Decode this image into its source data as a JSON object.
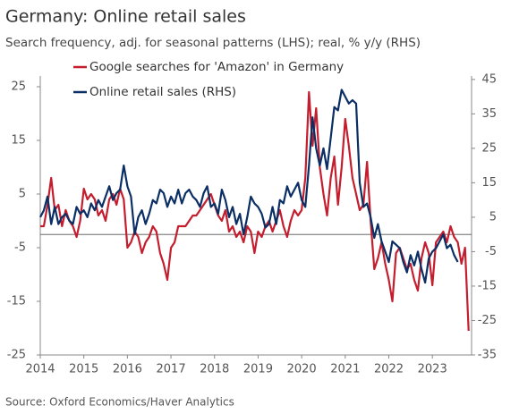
{
  "chart_data": {
    "type": "line",
    "title": "Germany: Online retail sales",
    "subtitle": "Search frequency, adj. for seasonal patterns (LHS); real, % y/y (RHS)",
    "source": "Source: Oxford Economics/Haver Analytics",
    "x": [
      2014,
      2014.083,
      2014.167,
      2014.25,
      2014.333,
      2014.417,
      2014.5,
      2014.583,
      2014.667,
      2014.75,
      2014.833,
      2014.917,
      2015,
      2015.083,
      2015.167,
      2015.25,
      2015.333,
      2015.417,
      2015.5,
      2015.583,
      2015.667,
      2015.75,
      2015.833,
      2015.917,
      2016,
      2016.083,
      2016.167,
      2016.25,
      2016.333,
      2016.417,
      2016.5,
      2016.583,
      2016.667,
      2016.75,
      2016.833,
      2016.917,
      2017,
      2017.083,
      2017.167,
      2017.25,
      2017.333,
      2017.417,
      2017.5,
      2017.583,
      2017.667,
      2017.75,
      2017.833,
      2017.917,
      2018,
      2018.083,
      2018.167,
      2018.25,
      2018.333,
      2018.417,
      2018.5,
      2018.583,
      2018.667,
      2018.75,
      2018.833,
      2018.917,
      2019,
      2019.083,
      2019.167,
      2019.25,
      2019.333,
      2019.417,
      2019.5,
      2019.583,
      2019.667,
      2019.75,
      2019.833,
      2019.917,
      2020,
      2020.083,
      2020.167,
      2020.25,
      2020.333,
      2020.417,
      2020.5,
      2020.583,
      2020.667,
      2020.75,
      2020.833,
      2020.917,
      2021,
      2021.083,
      2021.167,
      2021.25,
      2021.333,
      2021.417,
      2021.5,
      2021.583,
      2021.667,
      2021.75,
      2021.833,
      2021.917,
      2022,
      2022.083,
      2022.167,
      2022.25,
      2022.333,
      2022.417,
      2022.5,
      2022.583,
      2022.667,
      2022.75,
      2022.833,
      2022.917,
      2023,
      2023.083,
      2023.167,
      2023.25,
      2023.333,
      2023.417,
      2023.5,
      2023.583,
      2023.667,
      2023.75,
      2023.833
    ],
    "series": [
      {
        "name": "Google searches for 'Amazon' in Germany",
        "color": "#c41e2e",
        "values": [
          -1,
          -1,
          3,
          8,
          2,
          3,
          -1,
          2,
          0,
          -1,
          -3,
          0,
          6,
          4,
          5,
          4,
          1,
          2,
          0,
          4,
          5,
          3,
          6,
          4,
          -5,
          -4,
          -2,
          -3,
          -6,
          -4,
          -3,
          -1,
          -2,
          -6,
          -8,
          -11,
          -5,
          -4,
          -1,
          -1,
          -1,
          0,
          1,
          1,
          2,
          3,
          4,
          5,
          3,
          1,
          0,
          2,
          -2,
          -1,
          -3,
          -2,
          -4,
          -1,
          -2,
          -6,
          -2,
          -3,
          -1,
          0,
          -2,
          0,
          2,
          -1,
          -3,
          0,
          2,
          1,
          2,
          8,
          24,
          14,
          21,
          10,
          5,
          1,
          8,
          12,
          3,
          10,
          19,
          14,
          8,
          5,
          2,
          3,
          11,
          0,
          -9,
          -7,
          -4,
          -8,
          -11,
          -15,
          -6,
          -5,
          -7,
          -9,
          -8,
          -11,
          -13,
          -7,
          -4,
          -6,
          -12,
          -4,
          -3,
          -2,
          -4,
          -1,
          -3,
          -4,
          -8,
          -5,
          -20.5
        ]
      },
      {
        "name": "Online retail sales (RHS)",
        "color": "#0b2f64",
        "axis": "y2",
        "values": [
          5,
          7,
          11,
          3,
          8,
          3,
          5,
          6,
          4,
          3,
          8,
          6,
          7,
          5,
          9,
          7,
          10,
          8,
          11,
          14,
          10,
          12,
          13,
          20,
          14,
          11,
          0,
          5,
          7,
          3,
          6,
          10,
          9,
          13,
          12,
          8,
          11,
          9,
          13,
          9,
          12,
          13,
          11,
          10,
          8,
          12,
          14,
          8,
          9,
          6,
          13,
          10,
          5,
          8,
          3,
          6,
          0,
          5,
          11,
          9,
          8,
          6,
          2,
          3,
          8,
          3,
          10,
          9,
          14,
          11,
          13,
          15,
          10,
          8,
          20,
          34,
          25,
          20,
          25,
          19,
          28,
          37,
          36,
          42,
          40,
          38,
          39,
          38,
          15,
          8,
          9,
          5,
          -1,
          3,
          -2,
          -5,
          -8,
          -2,
          -3,
          -4,
          -8,
          -11,
          -6,
          -9,
          -5,
          -10,
          -14,
          -7,
          -5,
          -4,
          -2,
          0,
          -4,
          -3,
          -6,
          -8,
          null,
          null,
          null
        ]
      }
    ],
    "xlim": [
      2014,
      2023.9
    ],
    "xticks": [
      2014,
      2015,
      2016,
      2017,
      2018,
      2019,
      2020,
      2021,
      2022,
      2023
    ],
    "ylim": [
      -25,
      27
    ],
    "yticks": [
      -25,
      -15,
      -5,
      5,
      15,
      25
    ],
    "y2lim": [
      -35,
      46
    ],
    "y2ticks": [
      -35,
      -25,
      -15,
      -5,
      5,
      15,
      25,
      35,
      45
    ],
    "legend": "upper left"
  }
}
